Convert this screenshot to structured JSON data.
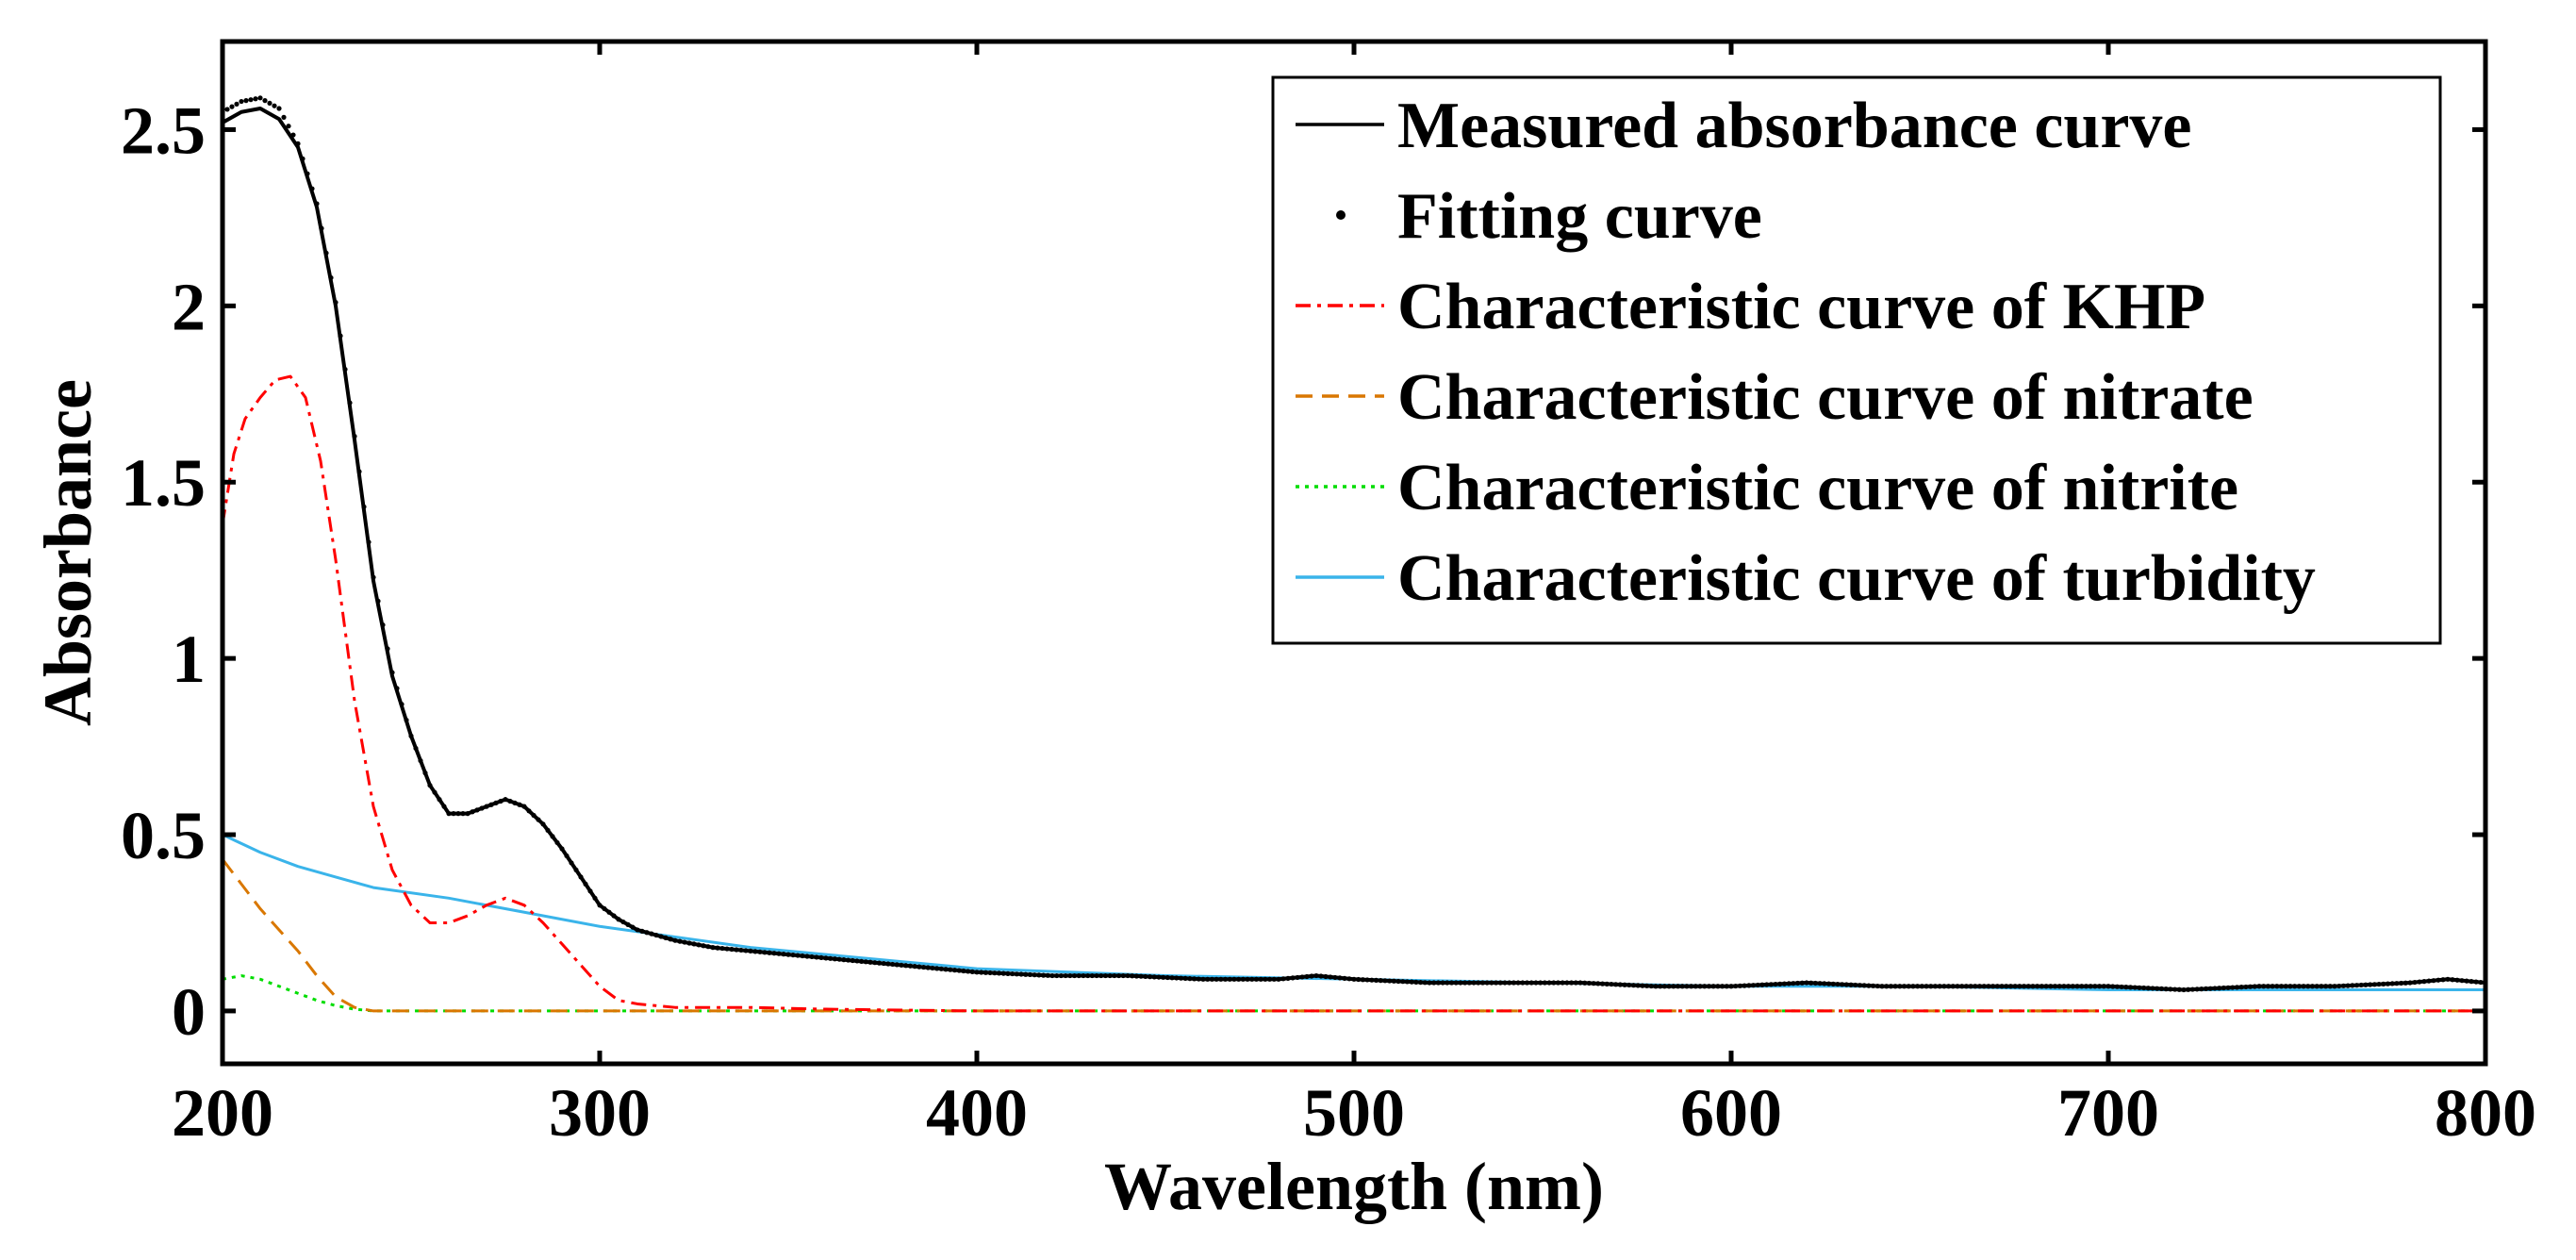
{
  "chart_data": {
    "type": "line",
    "title": "",
    "xlabel": "Wavelength (nm)",
    "ylabel": "Absorbance",
    "xlim": [
      200,
      800
    ],
    "ylim": [
      -0.15,
      2.75
    ],
    "xticks": [
      200,
      300,
      400,
      500,
      600,
      700,
      800
    ],
    "yticks": [
      0,
      0.5,
      1,
      1.5,
      2,
      2.5
    ],
    "xtick_labels": [
      "200",
      "300",
      "400",
      "500",
      "600",
      "700",
      "800"
    ],
    "ytick_labels": [
      "0",
      "0.5",
      "1",
      "1.5",
      "2",
      "2.5"
    ],
    "grid": false,
    "legend_position": "top-right",
    "series": [
      {
        "name": "Measured absorbance curve",
        "color": "#000000",
        "style": "solid",
        "x": [
          200,
          205,
          210,
          215,
          220,
          225,
          230,
          235,
          240,
          245,
          250,
          255,
          260,
          265,
          270,
          275,
          280,
          285,
          290,
          295,
          300,
          305,
          310,
          320,
          330,
          340,
          350,
          360,
          380,
          400,
          420,
          440,
          460,
          480,
          490,
          500,
          520,
          540,
          560,
          580,
          600,
          620,
          640,
          660,
          680,
          700,
          720,
          740,
          760,
          780,
          790,
          800
        ],
        "values": [
          2.52,
          2.55,
          2.56,
          2.53,
          2.45,
          2.28,
          2.0,
          1.62,
          1.22,
          0.95,
          0.78,
          0.64,
          0.56,
          0.56,
          0.58,
          0.6,
          0.58,
          0.53,
          0.46,
          0.38,
          0.3,
          0.26,
          0.23,
          0.2,
          0.18,
          0.17,
          0.16,
          0.15,
          0.13,
          0.11,
          0.1,
          0.1,
          0.09,
          0.09,
          0.1,
          0.09,
          0.08,
          0.08,
          0.08,
          0.07,
          0.07,
          0.08,
          0.07,
          0.07,
          0.07,
          0.07,
          0.06,
          0.07,
          0.07,
          0.08,
          0.09,
          0.08
        ]
      },
      {
        "name": "Fitting curve",
        "color": "#000000",
        "style": "dots",
        "x": [
          200,
          205,
          210,
          215,
          220,
          225,
          230,
          235,
          240,
          245,
          250,
          255,
          260,
          265,
          270,
          275,
          280,
          285,
          290,
          295,
          300,
          305,
          310,
          320,
          330,
          340,
          350,
          360,
          380,
          400,
          420,
          440,
          460,
          480,
          490,
          500,
          520,
          540,
          560,
          580,
          600,
          620,
          640,
          660,
          680,
          700,
          720,
          740,
          760,
          780,
          790,
          800
        ],
        "values": [
          2.55,
          2.58,
          2.59,
          2.56,
          2.46,
          2.29,
          2.01,
          1.63,
          1.23,
          0.96,
          0.78,
          0.64,
          0.56,
          0.56,
          0.58,
          0.6,
          0.58,
          0.53,
          0.46,
          0.38,
          0.3,
          0.26,
          0.23,
          0.2,
          0.18,
          0.17,
          0.16,
          0.15,
          0.13,
          0.11,
          0.1,
          0.1,
          0.09,
          0.09,
          0.1,
          0.09,
          0.08,
          0.08,
          0.08,
          0.07,
          0.07,
          0.08,
          0.07,
          0.07,
          0.07,
          0.07,
          0.06,
          0.07,
          0.07,
          0.08,
          0.09,
          0.08
        ]
      },
      {
        "name": "Characteristic curve of KHP",
        "color": "#ff0000",
        "style": "dashdot",
        "x": [
          200,
          203,
          206,
          210,
          214,
          218,
          222,
          226,
          230,
          235,
          240,
          245,
          250,
          255,
          260,
          265,
          270,
          275,
          280,
          285,
          290,
          295,
          300,
          305,
          310,
          320,
          340,
          360,
          400,
          500,
          600,
          700,
          800
        ],
        "values": [
          1.38,
          1.58,
          1.68,
          1.74,
          1.79,
          1.8,
          1.74,
          1.56,
          1.28,
          0.88,
          0.58,
          0.4,
          0.3,
          0.25,
          0.25,
          0.27,
          0.3,
          0.32,
          0.3,
          0.25,
          0.19,
          0.13,
          0.07,
          0.03,
          0.02,
          0.01,
          0.01,
          0.005,
          0.0,
          0.0,
          0.0,
          0.0,
          0.0
        ]
      },
      {
        "name": "Characteristic curve of nitrate",
        "color": "#d97700",
        "style": "dashed",
        "x": [
          200,
          205,
          210,
          215,
          220,
          225,
          230,
          235,
          240,
          250,
          300,
          400,
          500,
          600,
          700,
          800
        ],
        "values": [
          0.43,
          0.36,
          0.29,
          0.23,
          0.17,
          0.1,
          0.04,
          0.01,
          0.0,
          0.0,
          0.0,
          0.0,
          0.0,
          0.0,
          0.0,
          0.0
        ]
      },
      {
        "name": "Characteristic curve of nitrite",
        "color": "#00dd00",
        "style": "dotted",
        "x": [
          200,
          205,
          210,
          215,
          220,
          225,
          230,
          235,
          240,
          250,
          300,
          400,
          500,
          600,
          700,
          800
        ],
        "values": [
          0.09,
          0.1,
          0.09,
          0.07,
          0.05,
          0.03,
          0.015,
          0.005,
          0.0,
          0.0,
          0.0,
          0.0,
          0.0,
          0.0,
          0.0,
          0.0
        ]
      },
      {
        "name": "Characteristic curve of turbidity",
        "color": "#3ab4ea",
        "style": "solid",
        "x": [
          200,
          210,
          220,
          230,
          240,
          260,
          280,
          300,
          320,
          340,
          360,
          380,
          400,
          450,
          500,
          550,
          600,
          650,
          700,
          750,
          800
        ],
        "values": [
          0.5,
          0.45,
          0.41,
          0.38,
          0.35,
          0.32,
          0.28,
          0.24,
          0.21,
          0.18,
          0.16,
          0.14,
          0.12,
          0.1,
          0.09,
          0.08,
          0.07,
          0.07,
          0.06,
          0.06,
          0.06
        ]
      }
    ]
  }
}
